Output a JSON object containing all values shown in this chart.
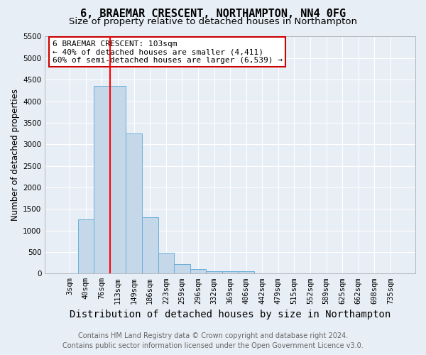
{
  "title1": "6, BRAEMAR CRESCENT, NORTHAMPTON, NN4 0FG",
  "title2": "Size of property relative to detached houses in Northampton",
  "xlabel": "Distribution of detached houses by size in Northampton",
  "ylabel": "Number of detached properties",
  "categories": [
    "3sqm",
    "40sqm",
    "76sqm",
    "113sqm",
    "149sqm",
    "186sqm",
    "223sqm",
    "259sqm",
    "296sqm",
    "332sqm",
    "369sqm",
    "406sqm",
    "442sqm",
    "479sqm",
    "515sqm",
    "552sqm",
    "589sqm",
    "625sqm",
    "662sqm",
    "698sqm",
    "735sqm"
  ],
  "values": [
    0,
    1250,
    4350,
    4350,
    3250,
    1300,
    480,
    220,
    100,
    55,
    55,
    60,
    0,
    0,
    0,
    0,
    0,
    0,
    0,
    0,
    0
  ],
  "bar_color": "#c5d8ea",
  "bar_edge_color": "#6aaed6",
  "red_line_x": 2.5,
  "ylim": [
    0,
    5500
  ],
  "yticks": [
    0,
    500,
    1000,
    1500,
    2000,
    2500,
    3000,
    3500,
    4000,
    4500,
    5000,
    5500
  ],
  "annotation_title": "6 BRAEMAR CRESCENT: 103sqm",
  "annotation_line1": "← 40% of detached houses are smaller (4,411)",
  "annotation_line2": "60% of semi-detached houses are larger (6,539) →",
  "annotation_box_color": "#ffffff",
  "annotation_box_edge": "#cc0000",
  "footer1": "Contains HM Land Registry data © Crown copyright and database right 2024.",
  "footer2": "Contains public sector information licensed under the Open Government Licence v3.0.",
  "bg_color": "#e8eef5",
  "plot_bg_color": "#e8eef5",
  "grid_color": "#ffffff",
  "title1_fontsize": 11,
  "title2_fontsize": 9.5,
  "xlabel_fontsize": 10,
  "ylabel_fontsize": 8.5,
  "tick_fontsize": 7.5,
  "footer_fontsize": 7,
  "ann_fontsize": 8
}
